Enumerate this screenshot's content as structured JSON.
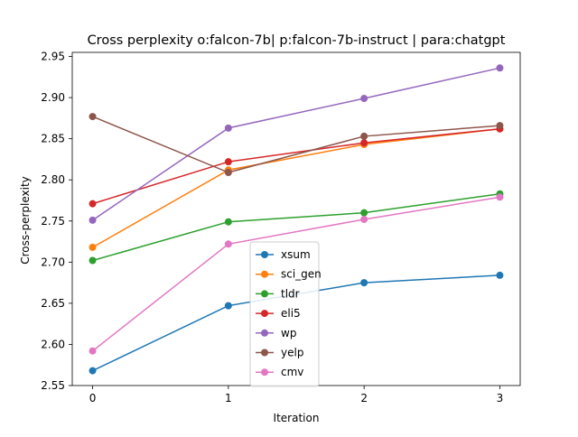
{
  "chart_data": {
    "type": "line",
    "title": "Cross perplexity o:falcon-7b| p:falcon-7b-instruct | para:chatgpt",
    "xlabel": "Iteration",
    "ylabel": "Cross-perplexity",
    "x": [
      0,
      1,
      2,
      3
    ],
    "xticks": [
      "0",
      "1",
      "2",
      "3"
    ],
    "xlim": [
      -0.15,
      3.15
    ],
    "ylim": [
      2.55,
      2.955
    ],
    "yticks": [
      "2.55",
      "2.60",
      "2.65",
      "2.70",
      "2.75",
      "2.80",
      "2.85",
      "2.90",
      "2.95"
    ],
    "grid": false,
    "legend_position": "lower center",
    "series": [
      {
        "name": "xsum",
        "color": "#1f77b4",
        "values": [
          2.568,
          2.647,
          2.675,
          2.684
        ]
      },
      {
        "name": "sci_gen",
        "color": "#ff7f0e",
        "values": [
          2.718,
          2.812,
          2.843,
          2.862
        ]
      },
      {
        "name": "tldr",
        "color": "#2ca02c",
        "values": [
          2.702,
          2.749,
          2.76,
          2.783
        ]
      },
      {
        "name": "eli5",
        "color": "#d62728",
        "values": [
          2.771,
          2.822,
          2.845,
          2.862
        ]
      },
      {
        "name": "wp",
        "color": "#9467bd",
        "values": [
          2.751,
          2.863,
          2.899,
          2.936
        ]
      },
      {
        "name": "yelp",
        "color": "#8c564b",
        "values": [
          2.877,
          2.809,
          2.853,
          2.866
        ]
      },
      {
        "name": "cmv",
        "color": "#e377c2",
        "values": [
          2.592,
          2.722,
          2.752,
          2.779
        ]
      }
    ]
  }
}
